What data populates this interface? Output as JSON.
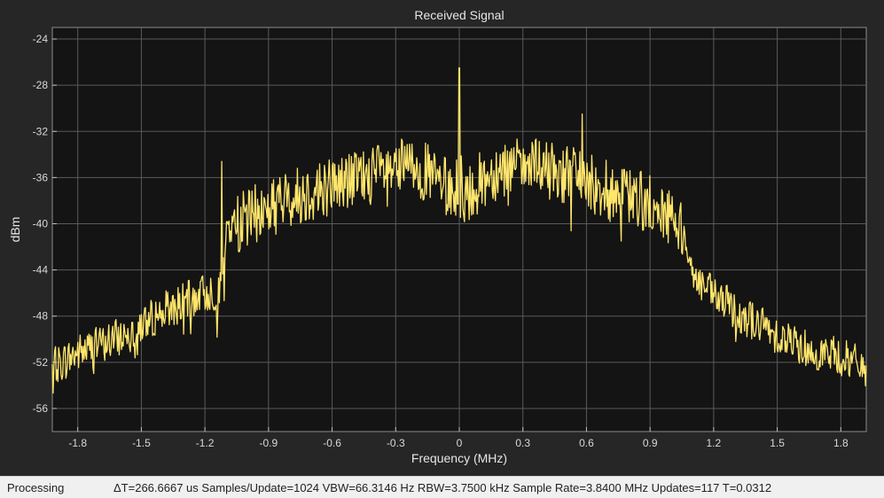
{
  "colors": {
    "background": "#262626",
    "plot_background": "#141414",
    "grid": "#5a5a5a",
    "trace": "#ffe66b",
    "text": "#e6e6e6"
  },
  "chart_data": {
    "type": "line",
    "title": "Received Signal",
    "xlabel": "Frequency (MHz)",
    "ylabel": "dBm",
    "xlim": [
      -1.92,
      1.92
    ],
    "ylim": [
      -58,
      -23
    ],
    "xticks": [
      -1.8,
      -1.5,
      -1.2,
      -0.9,
      -0.6,
      -0.3,
      0,
      0.3,
      0.6,
      0.9,
      1.2,
      1.5,
      1.8
    ],
    "xtick_labels": [
      "-1.8",
      "-1.5",
      "-1.2",
      "-0.9",
      "-0.6",
      "-0.3",
      "0",
      "0.3",
      "0.6",
      "0.9",
      "1.2",
      "1.5",
      "1.8"
    ],
    "yticks": [
      -24,
      -28,
      -32,
      -36,
      -40,
      -44,
      -48,
      -52,
      -56
    ],
    "ytick_labels": [
      "-24",
      "-28",
      "-32",
      "-36",
      "-40",
      "-44",
      "-48",
      "-52",
      "-56"
    ],
    "grid": true,
    "series": [
      {
        "x": [
          -1.92,
          -1.8,
          -1.6,
          -1.4,
          -1.2,
          -1.12,
          -1.1,
          -1.0,
          -0.8,
          -0.6,
          -0.4,
          -0.2,
          -0.02,
          0,
          0.02,
          0.2,
          0.4,
          0.55,
          0.58,
          0.6,
          0.7,
          0.8,
          0.9,
          1.0,
          1.07,
          1.1,
          1.2,
          1.4,
          1.6,
          1.8,
          1.92
        ],
        "y": [
          -52.5,
          -51.2,
          -49.8,
          -47.6,
          -46.0,
          -45.8,
          -40.5,
          -39.5,
          -37.8,
          -36.6,
          -35.7,
          -35.0,
          -37.5,
          -35.0,
          -37.5,
          -35.0,
          -35.3,
          -35.8,
          -36.1,
          -36.5,
          -37.0,
          -37.6,
          -38.3,
          -39.4,
          -40.9,
          -44.5,
          -46.3,
          -48.6,
          -50.5,
          -51.6,
          -52.5
        ]
      }
    ],
    "annotations": [
      {
        "x": -1.12,
        "y": -34.6
      },
      {
        "x": 0.0,
        "y": -26.5
      },
      {
        "x": 0.58,
        "y": -30.5
      }
    ]
  },
  "status": {
    "state": "Processing",
    "info": "ΔT=266.6667 us  Samples/Update=1024  VBW=66.3146 Hz  RBW=3.7500 kHz  Sample Rate=3.8400 MHz  Updates=117  T=0.0312"
  }
}
